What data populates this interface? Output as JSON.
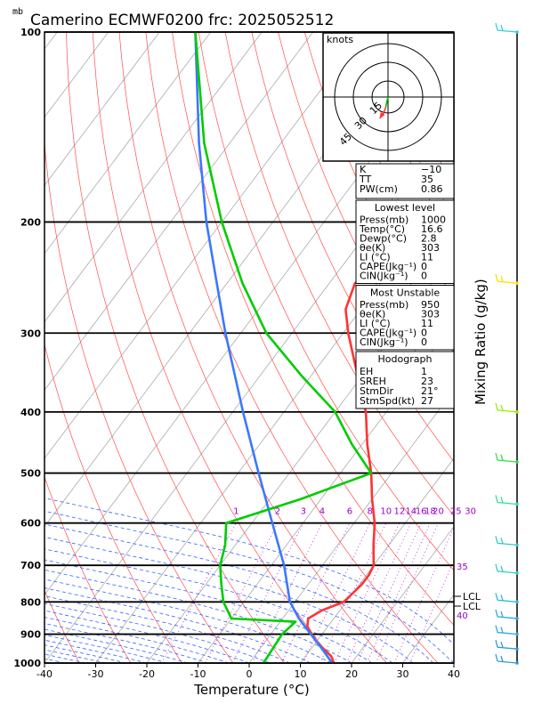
{
  "header": {
    "units": "mb",
    "title": "Camerino ECMWF0200  frc: 2025052512"
  },
  "chart_data": {
    "type": "line",
    "title": "Camerino ECMWF0200  frc: 2025052512",
    "xlabel": "Temperature (°C)",
    "ylabel_right": "Mixing Ratio (g/kg)",
    "pressure_unit": "mb",
    "xlim": [
      -40,
      40
    ],
    "x_ticks": [
      "-40",
      "-30",
      "-20",
      "-10",
      "0",
      "10",
      "20",
      "30",
      "40"
    ],
    "p_ticks": [
      "100",
      "200",
      "300",
      "400",
      "500",
      "600",
      "700",
      "800",
      "900",
      "1000"
    ],
    "mixing_ratio_labels": [
      "1",
      "2",
      "3",
      "4",
      "6",
      "8",
      "10",
      "12",
      "14",
      "16",
      "18",
      "20",
      "25",
      "30"
    ],
    "theta_e_labels": [
      "35",
      "40"
    ],
    "lcl_label": "LCL",
    "series": [
      {
        "id": "temperature",
        "color": "#ff3333",
        "values": [
          [
            1000,
            16.6
          ],
          [
            975,
            15
          ],
          [
            950,
            12.5
          ],
          [
            925,
            10
          ],
          [
            900,
            8
          ],
          [
            875,
            6
          ],
          [
            850,
            5
          ],
          [
            825,
            6.5
          ],
          [
            800,
            9.5
          ],
          [
            775,
            10
          ],
          [
            750,
            10.5
          ],
          [
            725,
            10.5
          ],
          [
            700,
            10
          ],
          [
            650,
            7
          ],
          [
            600,
            4
          ],
          [
            550,
            0
          ],
          [
            500,
            -4
          ],
          [
            450,
            -9
          ],
          [
            400,
            -14
          ],
          [
            350,
            -21
          ],
          [
            300,
            -29
          ],
          [
            275,
            -33
          ],
          [
            250,
            -35
          ],
          [
            225,
            -30
          ],
          [
            200,
            -25
          ],
          [
            175,
            -20
          ],
          [
            150,
            -15
          ],
          [
            125,
            -5
          ],
          [
            100,
            10
          ]
        ]
      },
      {
        "id": "parcel",
        "color": "#3a78ff",
        "values": [
          [
            1000,
            16.2
          ],
          [
            950,
            12.2
          ],
          [
            900,
            7.8
          ],
          [
            850,
            3.2
          ],
          [
            800,
            -1
          ],
          [
            700,
            -7.5
          ],
          [
            600,
            -16
          ],
          [
            500,
            -26
          ],
          [
            400,
            -38
          ],
          [
            300,
            -53
          ],
          [
            250,
            -62
          ],
          [
            200,
            -73
          ],
          [
            150,
            -86
          ],
          [
            100,
            -103
          ]
        ]
      },
      {
        "id": "dewpoint",
        "color": "#00cc00",
        "values": [
          [
            1000,
            2.8
          ],
          [
            950,
            2.5
          ],
          [
            900,
            2.2
          ],
          [
            860,
            3
          ],
          [
            850,
            -10
          ],
          [
            800,
            -14
          ],
          [
            750,
            -17
          ],
          [
            700,
            -20
          ],
          [
            650,
            -22
          ],
          [
            600,
            -25
          ],
          [
            550,
            -14
          ],
          [
            500,
            -4
          ],
          [
            450,
            -12
          ],
          [
            400,
            -20
          ],
          [
            350,
            -32
          ],
          [
            300,
            -45
          ],
          [
            250,
            -57
          ],
          [
            200,
            -70
          ],
          [
            150,
            -85
          ],
          [
            100,
            -103
          ]
        ]
      }
    ]
  },
  "hodograph": {
    "title": "knots",
    "ring_labels": [
      "15",
      "30",
      "45"
    ],
    "points": [
      [
        0,
        0
      ],
      [
        -1,
        -4
      ],
      [
        -2,
        -9
      ],
      [
        -4,
        -14
      ],
      [
        -7,
        -18
      ]
    ]
  },
  "indices": {
    "rows": [
      {
        "label": "K",
        "value": "−10"
      },
      {
        "label": "TT",
        "value": "35"
      },
      {
        "label": "PW(cm)",
        "value": "0.86"
      }
    ]
  },
  "lowest_level": {
    "title": "Lowest level",
    "rows": [
      {
        "label": "Press(mb)",
        "value": "1000"
      },
      {
        "label": "Temp(°C)",
        "value": "16.6"
      },
      {
        "label": "Dewp(°C)",
        "value": "2.8"
      },
      {
        "label": "θe(K)",
        "value": "303"
      },
      {
        "label": "LI (°C)",
        "value": "11"
      },
      {
        "label": "CAPE(Jkg⁻¹)",
        "value": "0"
      },
      {
        "label": "CIN(Jkg⁻¹)",
        "value": "0"
      }
    ]
  },
  "most_unstable": {
    "title": "Most Unstable",
    "rows": [
      {
        "label": "Press(mb)",
        "value": "950"
      },
      {
        "label": "θe(K)",
        "value": "303"
      },
      {
        "label": "LI (°C)",
        "value": "11"
      },
      {
        "label": "CAPE(Jkg⁻¹)",
        "value": "0"
      },
      {
        "label": "CIN(Jkg⁻¹)",
        "value": "0"
      }
    ]
  },
  "hodograph_params": {
    "title": "Hodograph",
    "rows": [
      {
        "label": "EH",
        "value": "1"
      },
      {
        "label": "SREH",
        "value": "23"
      },
      {
        "label": "StmDir",
        "value": "21°"
      },
      {
        "label": "StmSpd(kt)",
        "value": "27"
      }
    ]
  },
  "wind_profile": {
    "colors": {
      "upper": "#00ccdd",
      "mid": "#ffdd00",
      "lower": "#88ee00",
      "low": "#33dd33"
    },
    "levels": [
      {
        "p": 100,
        "color": "#33ccdd"
      },
      {
        "p": 250,
        "color": "#ffdd00"
      },
      {
        "p": 400,
        "color": "#99ee00"
      },
      {
        "p": 480,
        "color": "#33dd44"
      },
      {
        "p": 560,
        "color": "#33dd99"
      },
      {
        "p": 650,
        "color": "#33ccbb"
      },
      {
        "p": 720,
        "color": "#33ccbb"
      },
      {
        "p": 800,
        "color": "#33bbdd"
      },
      {
        "p": 850,
        "color": "#33aadd"
      },
      {
        "p": 900,
        "color": "#33aadd"
      },
      {
        "p": 950,
        "color": "#3399dd"
      },
      {
        "p": 1000,
        "color": "#3399dd"
      }
    ]
  }
}
